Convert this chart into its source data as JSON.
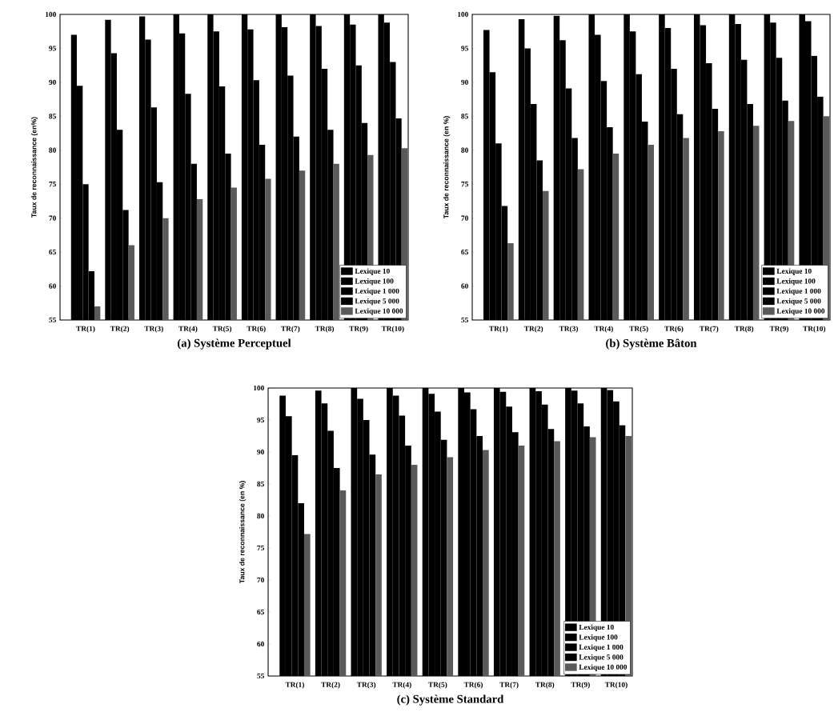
{
  "chart_data": [
    {
      "type": "bar",
      "title": "(a) Système Perceptuel",
      "ylabel": "Taux de reconnaissance (en%)",
      "categories": [
        "TR(1)",
        "TR(2)",
        "TR(3)",
        "TR(4)",
        "TR(5)",
        "TR(6)",
        "TR(7)",
        "TR(8)",
        "TR(9)",
        "TR(10)"
      ],
      "series": [
        {
          "name": "Lexique 10",
          "color": "#000000",
          "values": [
            97,
            99.2,
            99.7,
            100,
            100,
            100,
            100,
            100,
            100,
            100
          ]
        },
        {
          "name": "Lexique 100",
          "color": "#000000",
          "values": [
            89.5,
            94.3,
            96.3,
            97.2,
            97.5,
            97.8,
            98.1,
            98.3,
            98.5,
            98.8
          ]
        },
        {
          "name": "Lexique 1 000",
          "color": "#000000",
          "values": [
            75,
            83,
            86.3,
            88.3,
            89.4,
            90.3,
            91,
            92,
            92.5,
            93
          ]
        },
        {
          "name": "Lexique 5 000",
          "color": "#000000",
          "values": [
            62.2,
            71.2,
            75.3,
            78,
            79.5,
            80.8,
            82,
            83,
            84,
            84.7
          ]
        },
        {
          "name": "Lexique 10 000",
          "color": "#5a5a5a",
          "values": [
            57,
            66,
            70,
            72.8,
            74.5,
            75.8,
            77,
            78,
            79.3,
            80.3
          ]
        }
      ],
      "ylim": [
        55,
        100
      ],
      "yticks": [
        55,
        60,
        65,
        70,
        75,
        80,
        85,
        90,
        95,
        100
      ],
      "legend": "bottom right"
    },
    {
      "type": "bar",
      "title": "(b) Système Bâton",
      "ylabel": "Taux de reconnaissance (en %)",
      "categories": [
        "TR(1)",
        "TR(2)",
        "TR(3)",
        "TR(4)",
        "TR(5)",
        "TR(6)",
        "TR(7)",
        "TR(8)",
        "TR(9)",
        "TR(10)"
      ],
      "series": [
        {
          "name": "Lexique 10",
          "color": "#000000",
          "values": [
            97.7,
            99.3,
            99.8,
            100,
            100,
            100,
            100,
            100,
            100,
            100
          ]
        },
        {
          "name": "Lexique 100",
          "color": "#000000",
          "values": [
            91.5,
            95,
            96.2,
            97,
            97.5,
            98,
            98.4,
            98.6,
            98.8,
            99
          ]
        },
        {
          "name": "Lexique 1 000",
          "color": "#000000",
          "values": [
            81,
            86.8,
            89.1,
            90.2,
            91.2,
            92,
            92.8,
            93.3,
            93.6,
            93.9
          ]
        },
        {
          "name": "Lexique 5 000",
          "color": "#000000",
          "values": [
            71.8,
            78.5,
            81.8,
            83.4,
            84.2,
            85.3,
            86.1,
            86.8,
            87.3,
            87.9
          ]
        },
        {
          "name": "Lexique 10 000",
          "color": "#5a5a5a",
          "values": [
            66.3,
            74,
            77.2,
            79.5,
            80.8,
            81.8,
            82.8,
            83.6,
            84.3,
            85
          ]
        }
      ],
      "ylim": [
        55,
        100
      ],
      "yticks": [
        55,
        60,
        65,
        70,
        75,
        80,
        85,
        90,
        95,
        100
      ],
      "legend": "bottom right"
    },
    {
      "type": "bar",
      "title": "(c) Système Standard",
      "ylabel": "Taux de reconnaissance (en %)",
      "categories": [
        "TR(1)",
        "TR(2)",
        "TR(3)",
        "TR(4)",
        "TR(5)",
        "TR(6)",
        "TR(7)",
        "TR(8)",
        "TR(9)",
        "TR(10)"
      ],
      "series": [
        {
          "name": "Lexique 10",
          "color": "#000000",
          "values": [
            98.8,
            99.6,
            100,
            100,
            100,
            100,
            100,
            100,
            100,
            100
          ]
        },
        {
          "name": "Lexique 100",
          "color": "#000000",
          "values": [
            95.6,
            97.6,
            98.3,
            98.8,
            99.1,
            99.3,
            99.4,
            99.5,
            99.6,
            99.7
          ]
        },
        {
          "name": "Lexique 1 000",
          "color": "#000000",
          "values": [
            89.5,
            93.3,
            95,
            95.7,
            96.3,
            96.7,
            97.1,
            97.4,
            97.6,
            97.9
          ]
        },
        {
          "name": "Lexique 5 000",
          "color": "#000000",
          "values": [
            82,
            87.5,
            89.6,
            91,
            91.9,
            92.5,
            93.1,
            93.6,
            94,
            94.2
          ]
        },
        {
          "name": "Lexique 10 000",
          "color": "#5a5a5a",
          "values": [
            77.2,
            84,
            86.5,
            88,
            89.2,
            90.3,
            91,
            91.7,
            92.3,
            92.5
          ]
        }
      ],
      "ylim": [
        55,
        100
      ],
      "yticks": [
        55,
        60,
        65,
        70,
        75,
        80,
        85,
        90,
        95,
        100
      ],
      "legend": "bottom right"
    }
  ]
}
